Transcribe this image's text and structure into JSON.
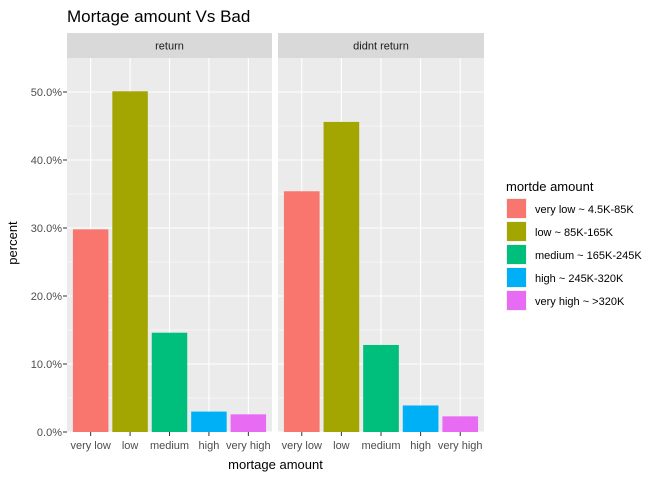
{
  "chart_data": {
    "type": "bar",
    "title": "Mortage amount Vs Bad",
    "xlabel": "mortage amount",
    "ylabel": "percent",
    "ylim": [
      0,
      0.55
    ],
    "yticks": [
      0,
      0.1,
      0.2,
      0.3,
      0.4,
      0.5
    ],
    "ytick_labels": [
      "0.0%",
      "10.0%",
      "20.0%",
      "30.0%",
      "40.0%",
      "50.0%"
    ],
    "categories": [
      "very low",
      "low",
      "medium",
      "high",
      "very high"
    ],
    "colors": [
      "#F8766D",
      "#A3A500",
      "#00BF7D",
      "#00B0F6",
      "#E76BF3"
    ],
    "grid": true,
    "legend_position": "right",
    "legend_title": "mortde amount",
    "legend_labels": [
      "very low ~ 4.5K-85K",
      "low ~ 85K-165K",
      "medium ~ 165K-245K",
      "high ~ 245K-320K",
      "very high ~ >320K"
    ],
    "facets": [
      {
        "label": "return",
        "values": [
          0.298,
          0.501,
          0.146,
          0.03,
          0.026
        ]
      },
      {
        "label": "didnt return",
        "values": [
          0.354,
          0.456,
          0.128,
          0.039,
          0.023
        ]
      }
    ]
  }
}
